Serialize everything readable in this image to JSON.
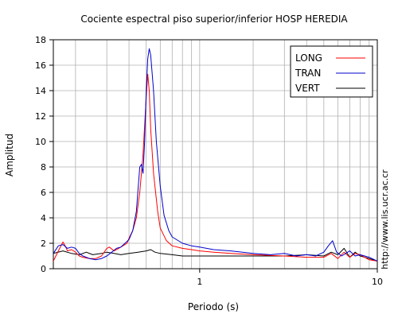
{
  "chart_data": {
    "type": "line",
    "title": "Cociente espectral piso superior/inferior  HOSP HEREDIA",
    "xlabel": "Periodo (s)",
    "ylabel": "Amplitud",
    "xscale": "log",
    "xlim": [
      0.15,
      10
    ],
    "ylim": [
      0,
      18
    ],
    "x_ticks": [
      {
        "value": 1,
        "label": "1"
      },
      {
        "value": 10,
        "label": "10"
      }
    ],
    "y_ticks": [
      {
        "value": 0,
        "label": "0"
      },
      {
        "value": 2,
        "label": "2"
      },
      {
        "value": 4,
        "label": "4"
      },
      {
        "value": 6,
        "label": "6"
      },
      {
        "value": 8,
        "label": "8"
      },
      {
        "value": 10,
        "label": "10"
      },
      {
        "value": 12,
        "label": "12"
      },
      {
        "value": 14,
        "label": "14"
      },
      {
        "value": 16,
        "label": "16"
      },
      {
        "value": 18,
        "label": "18"
      }
    ],
    "grid": true,
    "legend_position": "top-right",
    "side_text": "http://www.lis.ucr.ac.cr",
    "series": [
      {
        "name": "LONG",
        "color": "#ff0000",
        "points": [
          [
            0.15,
            0.6
          ],
          [
            0.16,
            1.4
          ],
          [
            0.17,
            2.1
          ],
          [
            0.175,
            1.8
          ],
          [
            0.18,
            1.4
          ],
          [
            0.19,
            1.5
          ],
          [
            0.2,
            1.3
          ],
          [
            0.21,
            1.0
          ],
          [
            0.22,
            0.9
          ],
          [
            0.24,
            0.8
          ],
          [
            0.26,
            0.8
          ],
          [
            0.28,
            1.0
          ],
          [
            0.3,
            1.6
          ],
          [
            0.31,
            1.7
          ],
          [
            0.33,
            1.4
          ],
          [
            0.35,
            1.6
          ],
          [
            0.37,
            1.8
          ],
          [
            0.39,
            2.0
          ],
          [
            0.4,
            2.4
          ],
          [
            0.42,
            3.0
          ],
          [
            0.44,
            4.0
          ],
          [
            0.46,
            6.0
          ],
          [
            0.48,
            9.0
          ],
          [
            0.5,
            13.5
          ],
          [
            0.51,
            15.3
          ],
          [
            0.52,
            14.0
          ],
          [
            0.53,
            11.0
          ],
          [
            0.55,
            7.5
          ],
          [
            0.58,
            4.5
          ],
          [
            0.6,
            3.2
          ],
          [
            0.65,
            2.2
          ],
          [
            0.7,
            1.8
          ],
          [
            0.8,
            1.6
          ],
          [
            0.9,
            1.5
          ],
          [
            1.0,
            1.4
          ],
          [
            1.2,
            1.3
          ],
          [
            1.5,
            1.2
          ],
          [
            2.0,
            1.1
          ],
          [
            3.0,
            1.0
          ],
          [
            4.0,
            0.9
          ],
          [
            5.0,
            0.9
          ],
          [
            5.5,
            1.2
          ],
          [
            6.0,
            0.8
          ],
          [
            6.5,
            1.3
          ],
          [
            7.0,
            0.9
          ],
          [
            7.5,
            1.2
          ],
          [
            8.0,
            1.1
          ],
          [
            9.0,
            0.7
          ],
          [
            10.0,
            0.6
          ]
        ]
      },
      {
        "name": "TRAN",
        "color": "#0000cc",
        "points": [
          [
            0.15,
            1.2
          ],
          [
            0.16,
            1.8
          ],
          [
            0.17,
            1.9
          ],
          [
            0.18,
            1.6
          ],
          [
            0.19,
            1.7
          ],
          [
            0.2,
            1.6
          ],
          [
            0.21,
            1.2
          ],
          [
            0.22,
            1.0
          ],
          [
            0.24,
            0.8
          ],
          [
            0.26,
            0.7
          ],
          [
            0.28,
            0.8
          ],
          [
            0.3,
            1.0
          ],
          [
            0.32,
            1.3
          ],
          [
            0.34,
            1.6
          ],
          [
            0.36,
            1.7
          ],
          [
            0.38,
            2.0
          ],
          [
            0.4,
            2.3
          ],
          [
            0.42,
            3.0
          ],
          [
            0.44,
            4.5
          ],
          [
            0.46,
            8.0
          ],
          [
            0.47,
            8.2
          ],
          [
            0.48,
            7.5
          ],
          [
            0.49,
            10.0
          ],
          [
            0.5,
            14.0
          ],
          [
            0.51,
            16.5
          ],
          [
            0.52,
            17.3
          ],
          [
            0.53,
            16.8
          ],
          [
            0.55,
            14.0
          ],
          [
            0.57,
            10.0
          ],
          [
            0.6,
            6.5
          ],
          [
            0.63,
            4.2
          ],
          [
            0.67,
            3.0
          ],
          [
            0.7,
            2.5
          ],
          [
            0.8,
            2.0
          ],
          [
            0.9,
            1.8
          ],
          [
            1.0,
            1.7
          ],
          [
            1.2,
            1.5
          ],
          [
            1.5,
            1.4
          ],
          [
            2.0,
            1.2
          ],
          [
            2.5,
            1.1
          ],
          [
            3.0,
            1.2
          ],
          [
            3.5,
            1.0
          ],
          [
            4.0,
            1.1
          ],
          [
            4.5,
            1.0
          ],
          [
            5.0,
            1.3
          ],
          [
            5.3,
            1.8
          ],
          [
            5.6,
            2.2
          ],
          [
            5.9,
            1.3
          ],
          [
            6.3,
            1.0
          ],
          [
            7.0,
            1.4
          ],
          [
            7.5,
            1.0
          ],
          [
            8.0,
            1.1
          ],
          [
            9.0,
            0.9
          ],
          [
            10.0,
            0.6
          ]
        ]
      },
      {
        "name": "VERT",
        "color": "#000000",
        "points": [
          [
            0.15,
            1.2
          ],
          [
            0.17,
            1.4
          ],
          [
            0.19,
            1.2
          ],
          [
            0.21,
            1.1
          ],
          [
            0.23,
            1.3
          ],
          [
            0.25,
            1.1
          ],
          [
            0.28,
            1.2
          ],
          [
            0.3,
            1.3
          ],
          [
            0.33,
            1.2
          ],
          [
            0.36,
            1.1
          ],
          [
            0.4,
            1.2
          ],
          [
            0.45,
            1.3
          ],
          [
            0.5,
            1.4
          ],
          [
            0.53,
            1.5
          ],
          [
            0.56,
            1.3
          ],
          [
            0.6,
            1.2
          ],
          [
            0.7,
            1.1
          ],
          [
            0.8,
            1.0
          ],
          [
            1.0,
            1.0
          ],
          [
            1.5,
            1.0
          ],
          [
            2.0,
            1.0
          ],
          [
            3.0,
            1.0
          ],
          [
            4.0,
            1.1
          ],
          [
            5.0,
            1.0
          ],
          [
            5.5,
            1.3
          ],
          [
            6.0,
            1.1
          ],
          [
            6.5,
            1.6
          ],
          [
            7.0,
            0.9
          ],
          [
            7.5,
            1.3
          ],
          [
            8.0,
            1.0
          ],
          [
            9.0,
            0.8
          ],
          [
            10.0,
            0.6
          ]
        ]
      }
    ]
  }
}
